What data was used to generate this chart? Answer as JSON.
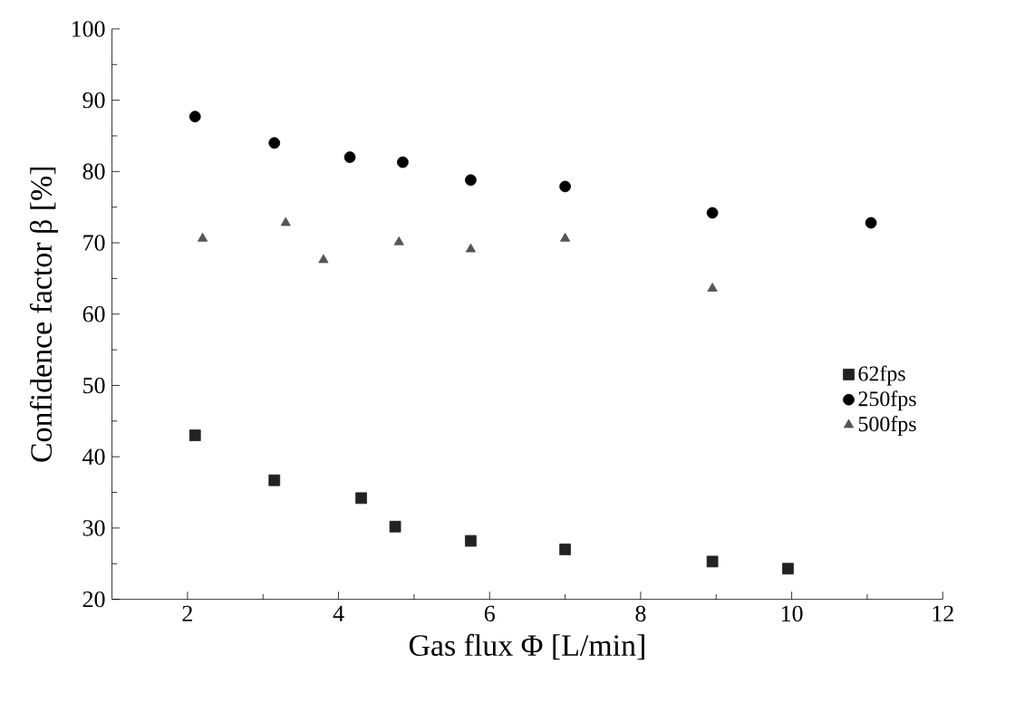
{
  "chart_data": {
    "type": "scatter",
    "xlabel": "Gas flux Φ [L/min]",
    "ylabel": "Confidence factor β [%]",
    "xlim": [
      1,
      12
    ],
    "ylim": [
      20,
      100
    ],
    "xticks": [
      2,
      4,
      6,
      8,
      10,
      12
    ],
    "yticks": [
      20,
      30,
      40,
      50,
      60,
      70,
      80,
      90,
      100
    ],
    "legend": "right",
    "grid": false,
    "series": [
      {
        "name": "62fps",
        "color": "#222222",
        "marker": "square",
        "x": [
          2.1,
          3.15,
          4.3,
          4.75,
          5.75,
          7,
          8.95,
          9.95
        ],
        "values": [
          43,
          36.7,
          34.2,
          30.2,
          28.2,
          27,
          25.3,
          24.3
        ]
      },
      {
        "name": "250fps",
        "color": "#000000",
        "marker": "circle",
        "x": [
          2.1,
          3.15,
          4.15,
          4.85,
          5.75,
          7,
          8.95,
          11.05
        ],
        "values": [
          87.7,
          84,
          82,
          81.3,
          78.8,
          77.9,
          74.2,
          72.8
        ]
      },
      {
        "name": "500fps",
        "color": "#555555",
        "marker": "triangle",
        "x": [
          2.2,
          3.3,
          3.8,
          4.8,
          5.75,
          7,
          8.95
        ],
        "values": [
          70.6,
          72.8,
          67.6,
          70.1,
          69.1,
          70.6,
          63.6
        ]
      }
    ]
  }
}
